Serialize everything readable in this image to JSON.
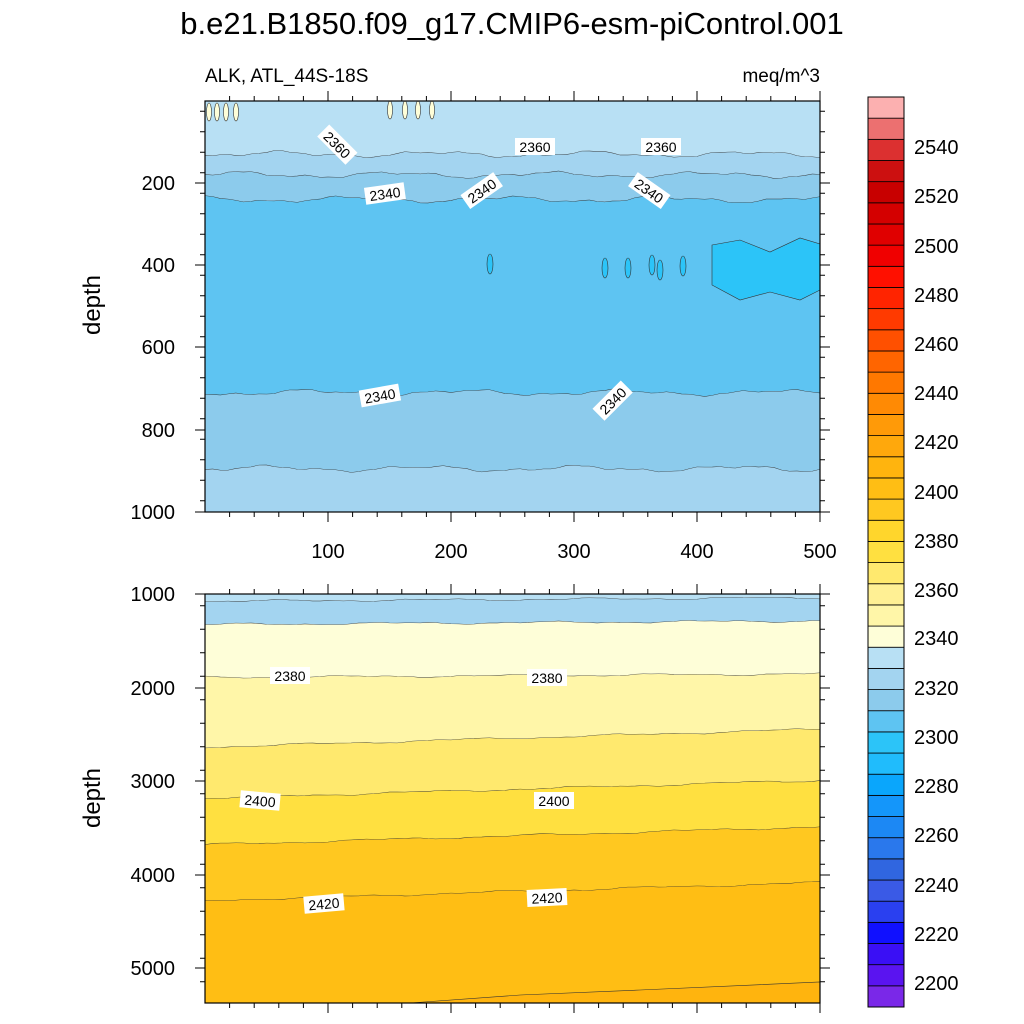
{
  "chart_data": {
    "type": "contour",
    "title": "b.e21.B1850.f09_g17.CMIP6-esm-piControl.001",
    "variable_label": "ALK, ATL_44S-18S",
    "units_label": "meq/m^3",
    "x_tick_labels": [
      "100",
      "200",
      "300",
      "400",
      "500"
    ],
    "colorbar": {
      "levels": [
        2190,
        2200,
        2210,
        2220,
        2230,
        2240,
        2250,
        2260,
        2270,
        2280,
        2290,
        2300,
        2310,
        2320,
        2330,
        2340,
        2345,
        2350,
        2355,
        2360,
        2365,
        2370,
        2375,
        2380,
        2385,
        2390,
        2395,
        2400,
        2405,
        2410,
        2415,
        2420,
        2425,
        2430,
        2435,
        2440,
        2445,
        2450,
        2460,
        2470,
        2480,
        2490,
        2500,
        2510,
        2520,
        2530,
        2540,
        2550,
        2560
      ],
      "tick_labels": [
        "2200",
        "2220",
        "2240",
        "2260",
        "2280",
        "2300",
        "2320",
        "2340",
        "2360",
        "2380",
        "2400",
        "2420",
        "2440",
        "2460",
        "2480",
        "2500",
        "2520",
        "2540"
      ],
      "colors": [
        "#7a28e8",
        "#5a14f0",
        "#3a0ff5",
        "#1010ff",
        "#2a40f0",
        "#3a5ae6",
        "#3066e0",
        "#2a78ec",
        "#1c88f4",
        "#1496fa",
        "#0aa6fc",
        "#20bcfc",
        "#2cc4f8",
        "#5ec4f2",
        "#8ccbec",
        "#a3d4f0",
        "#b8e0f4",
        "#fefed8",
        "#fff6a8",
        "#fff094",
        "#ffe96e",
        "#ffe040",
        "#ffd62c",
        "#ffc820",
        "#ffbe14",
        "#ffb40e",
        "#ffa80c",
        "#ff9a08",
        "#ff8a04",
        "#ff7800",
        "#ff6500",
        "#ff5000",
        "#ff3a00",
        "#ff2400",
        "#ff1000",
        "#f00000",
        "#e00000",
        "#d40000",
        "#c80000",
        "#cc1010",
        "#dc3030",
        "#ec7070",
        "#fcb0b0"
      ]
    },
    "panels": [
      {
        "xlabel": "",
        "ylabel": "depth",
        "xlim": [
          0,
          500
        ],
        "ylim": [
          1000,
          0
        ],
        "y_tick_labels": [
          "200",
          "400",
          "600",
          "800",
          "1000"
        ],
        "contour_labels": [
          "2360",
          "2360",
          "2360",
          "2340",
          "2340",
          "2340",
          "2340",
          "2340"
        ],
        "bands": [
          {
            "value": 2355,
            "color": "#b8e0f4",
            "depth_range": [
              0,
              130
            ]
          },
          {
            "value": 2350,
            "color": "#a3d4f0",
            "depth_range": [
              130,
              180
            ]
          },
          {
            "value": 2345,
            "color": "#8ccbec",
            "depth_range": [
              180,
              240
            ]
          },
          {
            "value": 2335,
            "color": "#5ec4f2",
            "depth_range": [
              240,
              710
            ]
          },
          {
            "value": 2345,
            "color": "#8ccbec",
            "depth_range": [
              710,
              895
            ]
          },
          {
            "value": 2350,
            "color": "#a3d4f0",
            "depth_range": [
              895,
              1000
            ]
          }
        ]
      },
      {
        "xlabel": "",
        "ylabel": "depth",
        "xlim": [
          0,
          500
        ],
        "ylim": [
          5400,
          1000
        ],
        "y_tick_labels": [
          "1000",
          "2000",
          "3000",
          "4000",
          "5000"
        ],
        "contour_labels": [
          "2380",
          "2380",
          "2400",
          "2400",
          "2420",
          "2420"
        ],
        "bands": [
          {
            "value": 2355,
            "color": "#b8e0f4",
            "depth_range": [
              1000,
              1080
            ]
          },
          {
            "value": 2350,
            "color": "#a3d4f0",
            "depth_range": [
              1080,
              1330
            ]
          },
          {
            "value": 2375,
            "color": "#fefed8",
            "depth_range": [
              1330,
              1900
            ]
          },
          {
            "value": 2385,
            "color": "#fff6a8",
            "depth_range": [
              1900,
              2650
            ]
          },
          {
            "value": 2395,
            "color": "#ffe96e",
            "depth_range": [
              2650,
              3200
            ]
          },
          {
            "value": 2405,
            "color": "#ffe040",
            "depth_range": [
              3200,
              3700
            ]
          },
          {
            "value": 2415,
            "color": "#ffc820",
            "depth_range": [
              3700,
              4300
            ]
          },
          {
            "value": 2425,
            "color": "#ffbe14",
            "depth_range": [
              4300,
              5400
            ]
          }
        ]
      }
    ]
  }
}
